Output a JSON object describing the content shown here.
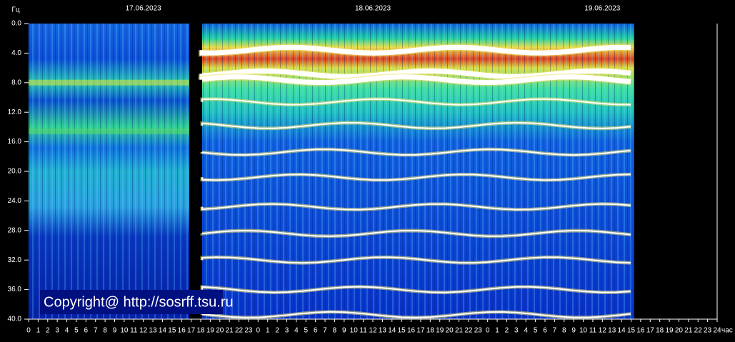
{
  "chart_data": {
    "type": "spectrogram",
    "y_label": "Гц",
    "x_label": "час",
    "annotations": [
      {
        "text": "17.06.2023",
        "x": 12
      },
      {
        "text": "18.06.2023",
        "x": 36
      },
      {
        "text": "19.06.2023",
        "x": 60
      }
    ],
    "copyright": "Copyright@ http://sosrff.tsu.ru",
    "ylim": [
      0,
      40
    ],
    "yticks": [
      {
        "value": 0,
        "label": "0.0"
      },
      {
        "value": 4,
        "label": "4.0"
      },
      {
        "value": 8,
        "label": "8.0"
      },
      {
        "value": 12,
        "label": "12.0"
      },
      {
        "value": 16,
        "label": "16.0"
      },
      {
        "value": 20,
        "label": "20.0"
      },
      {
        "value": 24,
        "label": "24.0"
      },
      {
        "value": 28,
        "label": "28.0"
      },
      {
        "value": 32,
        "label": "32.0"
      },
      {
        "value": 36,
        "label": "36.0"
      },
      {
        "value": 40,
        "label": "40.0"
      }
    ],
    "xlim": [
      0,
      72
    ],
    "xticks": [
      0,
      1,
      2,
      3,
      4,
      5,
      6,
      7,
      8,
      9,
      10,
      11,
      12,
      13,
      14,
      15,
      16,
      17,
      18,
      19,
      20,
      21,
      22,
      23,
      {
        "value": 24,
        "label": "0"
      },
      {
        "value": 25,
        "label": "1"
      },
      {
        "value": 26,
        "label": "2"
      },
      {
        "value": 27,
        "label": "3"
      },
      {
        "value": 28,
        "label": "4"
      },
      {
        "value": 29,
        "label": "5"
      },
      {
        "value": 30,
        "label": "6"
      },
      {
        "value": 31,
        "label": "7"
      },
      {
        "value": 32,
        "label": "8"
      },
      {
        "value": 33,
        "label": "9"
      },
      {
        "value": 34,
        "label": "10"
      },
      {
        "value": 35,
        "label": "11"
      },
      {
        "value": 36,
        "label": "12"
      },
      {
        "value": 37,
        "label": "13"
      },
      {
        "value": 38,
        "label": "14"
      },
      {
        "value": 39,
        "label": "15"
      },
      {
        "value": 40,
        "label": "16"
      },
      {
        "value": 41,
        "label": "17"
      },
      {
        "value": 42,
        "label": "18"
      },
      {
        "value": 43,
        "label": "19"
      },
      {
        "value": 44,
        "label": "20"
      },
      {
        "value": 45,
        "label": "21"
      },
      {
        "value": 46,
        "label": "22"
      },
      {
        "value": 47,
        "label": "23"
      },
      {
        "value": 48,
        "label": "0"
      },
      {
        "value": 49,
        "label": "1"
      },
      {
        "value": 50,
        "label": "2"
      },
      {
        "value": 51,
        "label": "3"
      },
      {
        "value": 52,
        "label": "4"
      },
      {
        "value": 53,
        "label": "5"
      },
      {
        "value": 54,
        "label": "6"
      },
      {
        "value": 55,
        "label": "7"
      },
      {
        "value": 56,
        "label": "8"
      },
      {
        "value": 57,
        "label": "9"
      },
      {
        "value": 58,
        "label": "10"
      },
      {
        "value": 59,
        "label": "11"
      },
      {
        "value": 60,
        "label": "12"
      },
      {
        "value": 61,
        "label": "13"
      },
      {
        "value": 62,
        "label": "14"
      },
      {
        "value": 63,
        "label": "15"
      },
      {
        "value": 64,
        "label": "16"
      },
      {
        "value": 65,
        "label": "17"
      },
      {
        "value": 66,
        "label": "18"
      },
      {
        "value": 67,
        "label": "19"
      },
      {
        "value": 68,
        "label": "20"
      },
      {
        "value": 69,
        "label": "21"
      },
      {
        "value": 70,
        "label": "22"
      },
      {
        "value": 71,
        "label": "23"
      },
      {
        "value": 72,
        "label": "24"
      }
    ]
  }
}
